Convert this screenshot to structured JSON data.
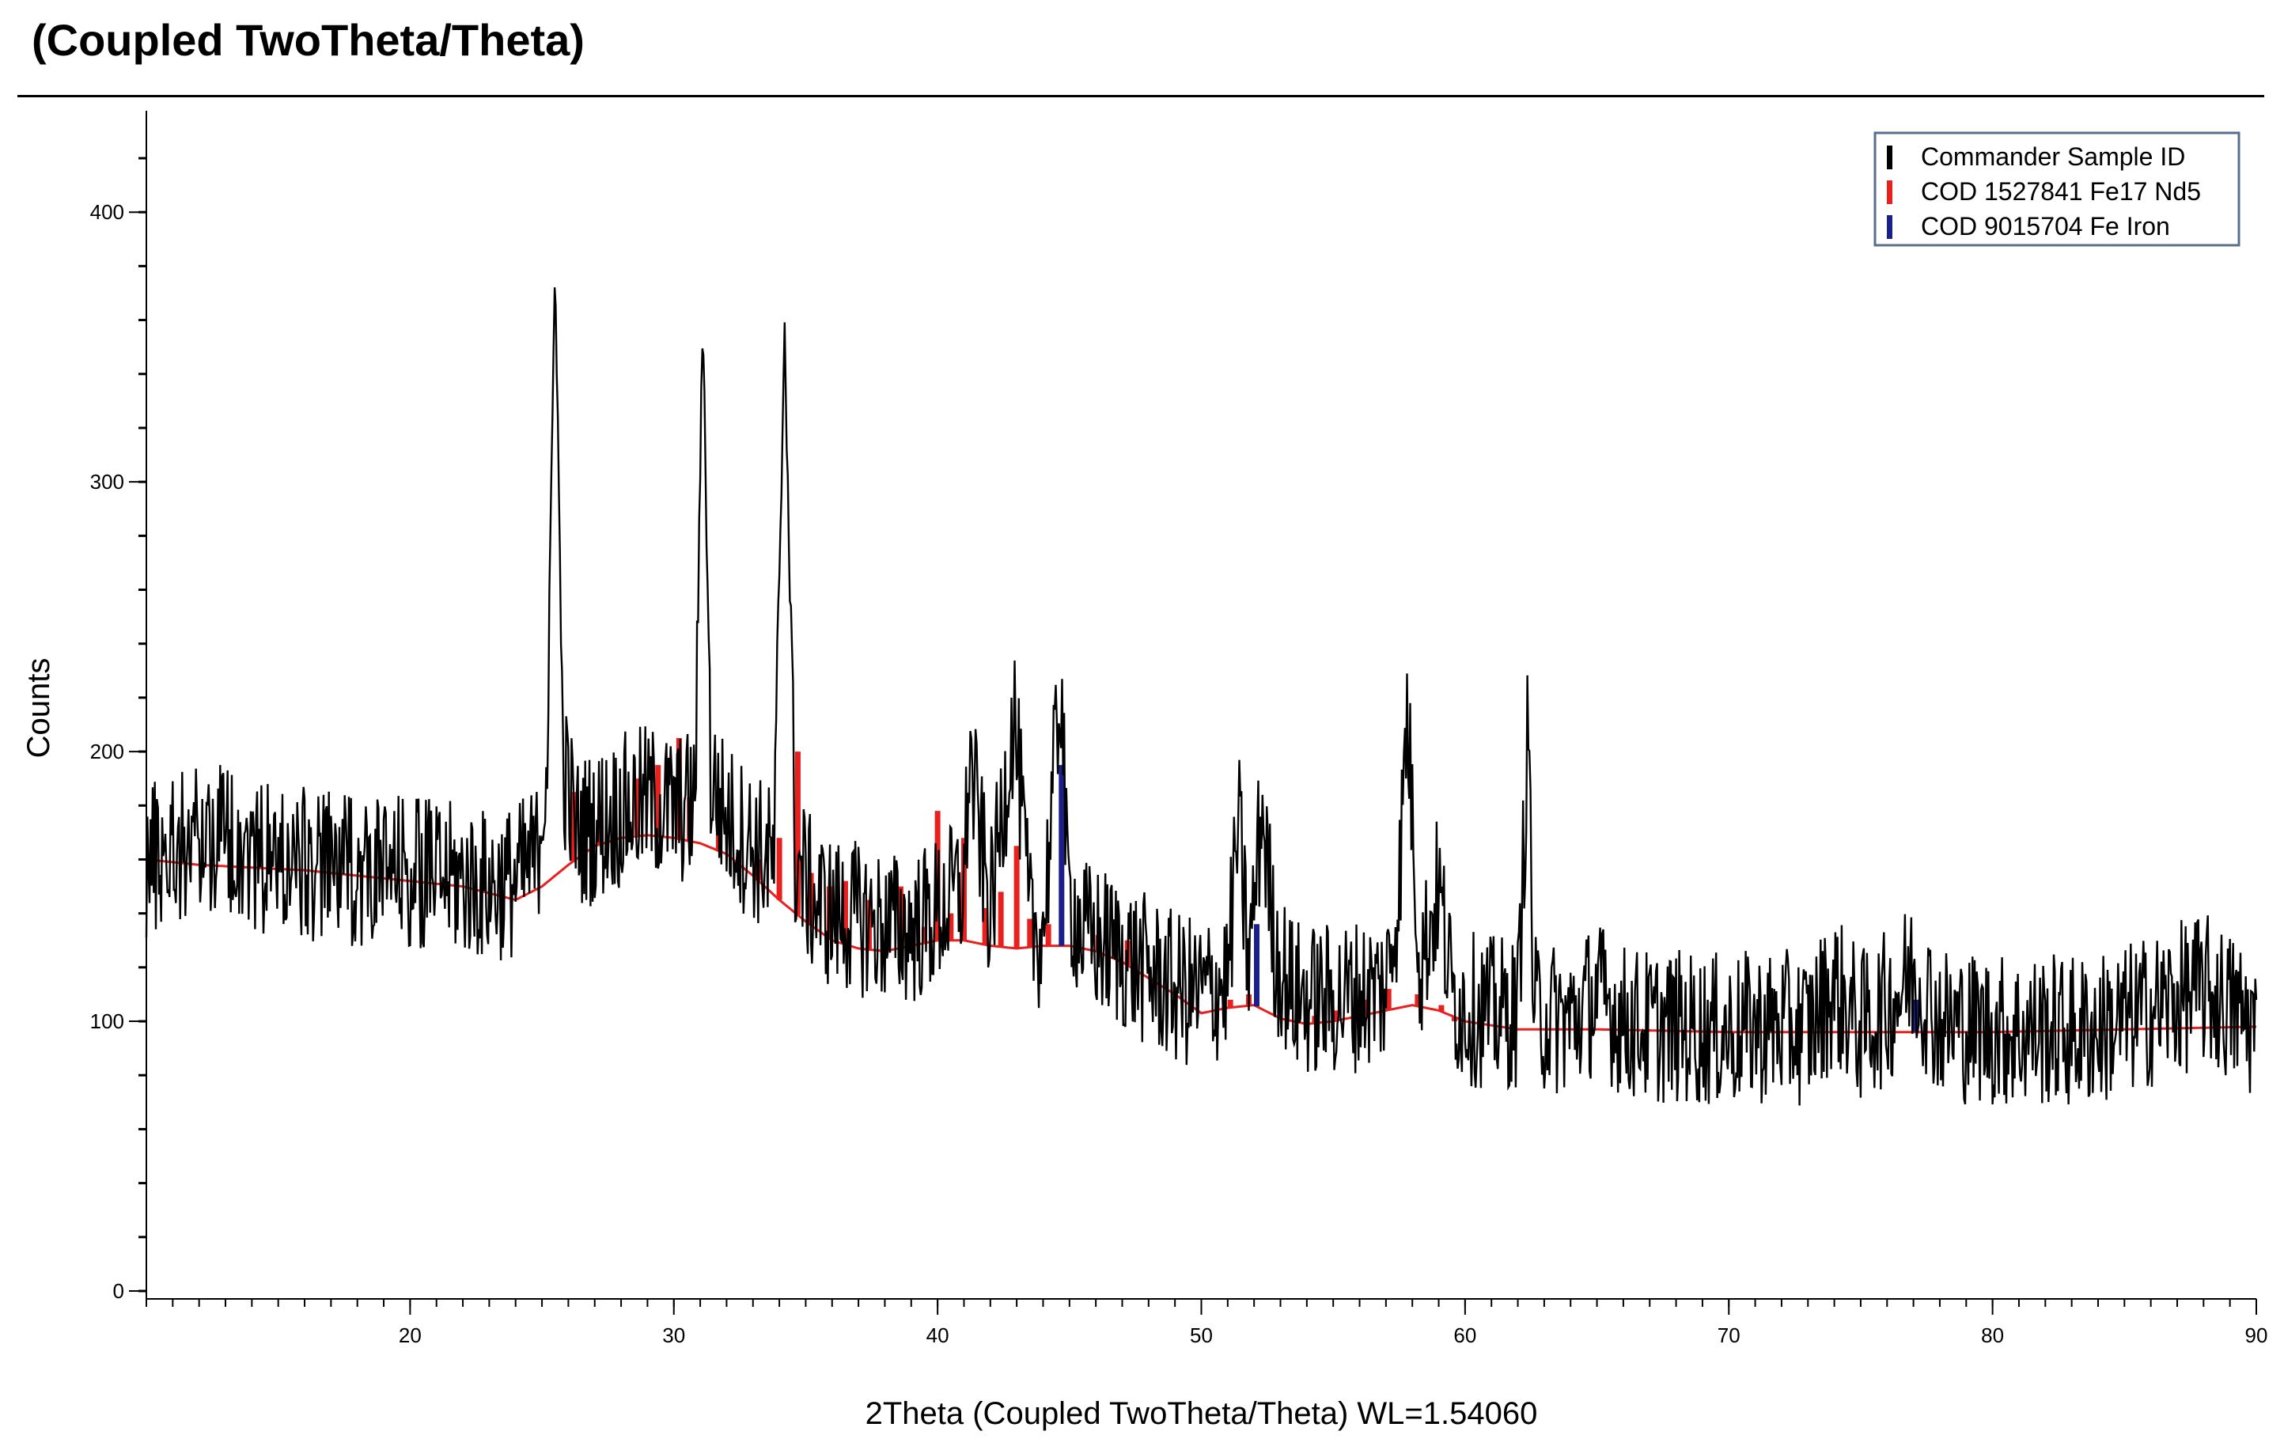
{
  "chart_data": {
    "type": "line",
    "title": "(Coupled TwoTheta/Theta)",
    "xlabel": "2Theta (Coupled TwoTheta/Theta) WL=1.54060",
    "ylabel": "Counts",
    "xlim": [
      10,
      90
    ],
    "ylim": [
      0,
      420
    ],
    "xticks": [
      20,
      30,
      40,
      50,
      60,
      70,
      80,
      90
    ],
    "yticks": [
      0,
      100,
      200,
      300,
      400
    ],
    "grid": false,
    "legend_position": "top-right",
    "series": [
      {
        "name": "Commander Sample ID",
        "color": "#000000",
        "style": "noisy-line",
        "x": [
          10,
          11,
          12,
          13,
          14,
          15,
          16,
          17,
          18,
          19,
          20,
          21,
          22,
          23,
          24,
          24.8,
          25.2,
          25.5,
          25.8,
          26.3,
          27,
          28,
          29,
          30,
          30.8,
          31.1,
          31.4,
          32,
          33,
          33.8,
          34.2,
          34.6,
          35.3,
          36,
          37,
          38,
          39,
          40,
          41,
          41.2,
          42,
          42.9,
          43.5,
          44,
          44.7,
          44.9,
          45.5,
          46,
          47,
          48,
          49,
          50,
          51,
          51.4,
          51.8,
          52.3,
          52.8,
          53.5,
          54,
          55,
          56,
          57,
          57.5,
          57.8,
          58.3,
          59,
          59.5,
          60,
          61,
          62,
          62.4,
          62.6,
          63,
          64,
          65,
          66,
          67,
          68,
          69,
          70,
          71,
          72,
          73,
          74,
          75,
          76,
          77,
          78,
          79,
          80,
          81,
          82,
          83,
          84,
          85,
          86,
          87,
          88,
          89,
          90
        ],
        "y": [
          160,
          165,
          168,
          170,
          162,
          160,
          158,
          157,
          156,
          155,
          155,
          154,
          152,
          150,
          152,
          160,
          200,
          385,
          195,
          170,
          172,
          178,
          182,
          178,
          180,
          365,
          190,
          175,
          165,
          158,
          360,
          160,
          145,
          140,
          138,
          135,
          134,
          140,
          150,
          198,
          140,
          215,
          135,
          133,
          230,
          150,
          132,
          130,
          125,
          118,
          112,
          110,
          115,
          175,
          120,
          180,
          125,
          110,
          108,
          108,
          110,
          112,
          150,
          215,
          120,
          150,
          110,
          105,
          103,
          103,
          212,
          103,
          102,
          100,
          110,
          100,
          98,
          98,
          97,
          96,
          98,
          98,
          97,
          112,
          98,
          105,
          118,
          100,
          98,
          97,
          96,
          97,
          96,
          97,
          100,
          104,
          108,
          112,
          105,
          98
        ]
      },
      {
        "name": "COD 1527841 Fe17 Nd5",
        "color": "#e8201e",
        "style": "sticks",
        "x": [
          26.2,
          27.2,
          28.6,
          29.4,
          30.2,
          30.6,
          31.7,
          33.2,
          34.0,
          34.7,
          35.2,
          35.9,
          36.5,
          37.4,
          38.6,
          39.5,
          40.0,
          40.5,
          41.0,
          41.8,
          42.4,
          43.0,
          43.5,
          44.2,
          46.1,
          47.2,
          48.2,
          51.1,
          51.8,
          53.6,
          54.3,
          55.1,
          56.2,
          57.1,
          58.2,
          59.1,
          59.6
        ],
        "y": [
          185,
          180,
          190,
          195,
          205,
          183,
          172,
          160,
          168,
          200,
          155,
          150,
          152,
          145,
          150,
          135,
          178,
          140,
          168,
          142,
          148,
          165,
          138,
          136,
          132,
          130,
          116,
          108,
          110,
          100,
          102,
          104,
          108,
          112,
          110,
          106,
          100
        ]
      },
      {
        "name": "COD 9015704 Fe Iron",
        "color": "#1a1f8c",
        "style": "sticks",
        "x": [
          44.7,
          52.1,
          77.1
        ],
        "y": [
          195,
          136,
          108
        ]
      }
    ],
    "background_curve": {
      "color": "#e8201e",
      "x": [
        10,
        12,
        14,
        16,
        18,
        20,
        22,
        24,
        25,
        26,
        27,
        28,
        29,
        30,
        31,
        32,
        33,
        34,
        35,
        36,
        37,
        38,
        39,
        40,
        41,
        42,
        43,
        44,
        45,
        46,
        47,
        48,
        49,
        50,
        51,
        52,
        53,
        54,
        55,
        56,
        57,
        58,
        59,
        60,
        62,
        65,
        70,
        75,
        80,
        85,
        90
      ],
      "y": [
        160,
        158,
        157,
        156,
        154,
        152,
        150,
        145,
        150,
        158,
        165,
        168,
        169,
        168,
        166,
        162,
        154,
        145,
        137,
        130,
        127,
        126,
        128,
        130,
        130,
        128,
        127,
        128,
        128,
        126,
        122,
        116,
        110,
        103,
        105,
        106,
        101,
        99,
        100,
        102,
        104,
        106,
        104,
        100,
        97,
        97,
        96,
        96,
        96,
        97,
        98
      ]
    }
  }
}
